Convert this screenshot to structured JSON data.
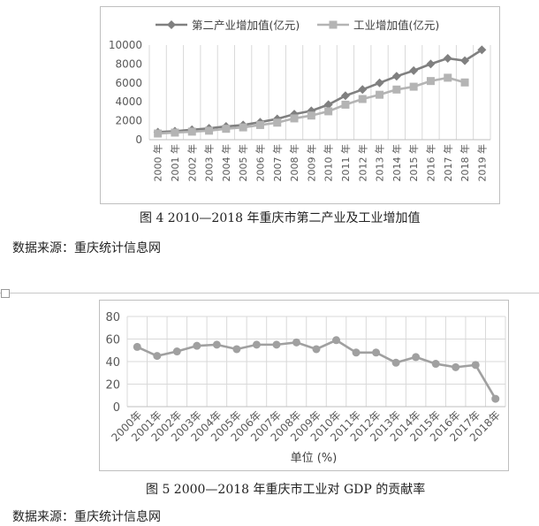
{
  "chart_data": [
    {
      "type": "line",
      "categories": [
        "2000年",
        "2001年",
        "2002年",
        "2003年",
        "2004年",
        "2005年",
        "2006年",
        "2007年",
        "2008年",
        "2009年",
        "2010年",
        "2011年",
        "2012年",
        "2013年",
        "2014年",
        "2015年",
        "2016年",
        "2017年",
        "2018年",
        "2019年"
      ],
      "series": [
        {
          "name": "第二产业增加值(亿元)",
          "values": [
            800,
            900,
            1050,
            1200,
            1400,
            1550,
            1850,
            2200,
            2700,
            3050,
            3700,
            4650,
            5300,
            6000,
            6700,
            7300,
            8000,
            8600,
            8350,
            9500
          ],
          "color": "#808080",
          "marker": "diamond"
        },
        {
          "name": "工业增加值(亿元)",
          "values": [
            650,
            750,
            850,
            950,
            1150,
            1300,
            1550,
            1800,
            2250,
            2550,
            3000,
            3700,
            4300,
            4750,
            5300,
            5600,
            6200,
            6550,
            6050,
            null
          ],
          "color": "#b4b4b4",
          "marker": "square"
        }
      ],
      "ylim": [
        0,
        10000
      ],
      "yticks": [
        0,
        2000,
        4000,
        6000,
        8000,
        10000
      ],
      "grid": "vertical",
      "legend": "top"
    },
    {
      "type": "line",
      "categories": [
        "2000年",
        "2001年",
        "2002年",
        "2003年",
        "2004年",
        "2005年",
        "2006年",
        "2007年",
        "2008年",
        "2009年",
        "2010年",
        "2011年",
        "2012年",
        "2013年",
        "2014年",
        "2015年",
        "2016年",
        "2017年",
        "2018年"
      ],
      "series": [
        {
          "values": [
            53,
            45,
            49,
            54,
            55,
            51,
            55,
            55,
            57,
            51,
            59,
            48,
            48,
            39,
            44,
            38,
            35,
            37,
            7
          ],
          "color": "#a0a0a0",
          "marker": "circle"
        }
      ],
      "ylim": [
        0,
        80
      ],
      "yticks": [
        0,
        20,
        40,
        60,
        80
      ],
      "xlabel": "单位 (%)",
      "grid": "both",
      "legend": "none"
    }
  ],
  "captions": {
    "fig4": "图 4    2010—2018 年重庆市第二产业及工业增加值",
    "fig5": "图 5    2000—2018 年重庆市工业对 GDP 的贡献率"
  },
  "sources": {
    "fig4": "数据来源：重庆统计信息网",
    "fig5": "数据来源：重庆统计信息网"
  }
}
